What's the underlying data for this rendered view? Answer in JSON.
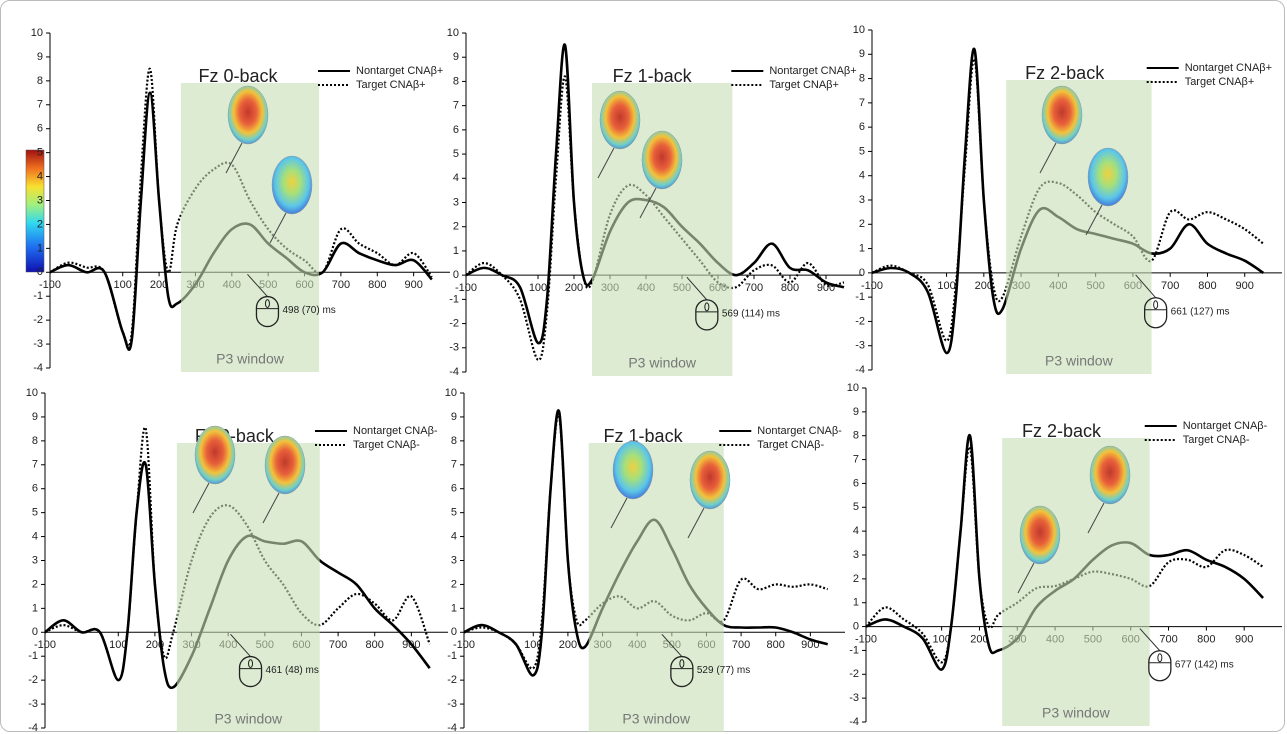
{
  "chart_data": [
    {
      "type": "line",
      "title": "Fz 0-back",
      "x": [
        -100,
        -50,
        0,
        50,
        100,
        125,
        150,
        175,
        200,
        225,
        250,
        300,
        350,
        400,
        450,
        500,
        550,
        600,
        650,
        700,
        750,
        800,
        850,
        900,
        950
      ],
      "series": [
        {
          "name": "Nontarget CNAβ+",
          "color": "#000000",
          "style": "solid",
          "values": [
            0,
            0.3,
            0,
            0,
            -2.5,
            -2.8,
            3,
            7.5,
            3,
            -1,
            -1.3,
            -0.5,
            0.8,
            1.8,
            2,
            1.2,
            0.6,
            0,
            0,
            1.2,
            0.8,
            0.5,
            0.3,
            0.5,
            -0.3
          ]
        },
        {
          "name": "Target CNAβ+",
          "color": "#000000",
          "style": "dotted",
          "values": [
            0,
            0.4,
            0.2,
            0,
            -2.5,
            -2.5,
            4,
            8.5,
            3,
            0,
            2,
            3.5,
            4.3,
            4.5,
            3,
            1.8,
            1,
            0.5,
            0,
            1.8,
            1.2,
            0.8,
            0.3,
            0.8,
            -0.2
          ]
        }
      ],
      "xlim": [
        -100,
        1000
      ],
      "ylim": [
        -4,
        10
      ],
      "xticks": [
        -100,
        100,
        200,
        300,
        400,
        500,
        600,
        700,
        800,
        900
      ],
      "yticks": [
        -4,
        -3,
        -2,
        -1,
        0,
        1,
        2,
        3,
        4,
        5,
        6,
        7,
        8,
        9,
        10
      ],
      "window": {
        "label": "P3 window",
        "range": [
          260,
          640
        ]
      },
      "rt": {
        "value": 498,
        "label": "498 (70) ms"
      }
    },
    {
      "type": "line",
      "title": "Fz 1-back",
      "x": [
        -100,
        -50,
        0,
        50,
        100,
        125,
        150,
        175,
        200,
        225,
        250,
        300,
        350,
        400,
        450,
        500,
        550,
        600,
        650,
        700,
        750,
        800,
        850,
        900,
        950
      ],
      "series": [
        {
          "name": "Nontarget CNAβ+",
          "color": "#000000",
          "style": "solid",
          "values": [
            0,
            0.3,
            0,
            -0.5,
            -2.8,
            -1,
            5,
            9.5,
            3,
            0,
            -0.2,
            1.8,
            3,
            3.1,
            2.8,
            2,
            1.3,
            0.5,
            0,
            0.5,
            1.3,
            0.3,
            0.2,
            -0.3,
            -0.5
          ]
        },
        {
          "name": "Target CNAβ+",
          "color": "#000000",
          "style": "dotted",
          "values": [
            0,
            0.5,
            0,
            -1,
            -3.5,
            -1.5,
            4,
            8.2,
            3,
            0,
            -0.3,
            2.5,
            3.7,
            3.3,
            2.4,
            1.5,
            0.6,
            -0.3,
            -0.5,
            0.2,
            0.4,
            -0.3,
            0.5,
            -0.4,
            -0.3
          ]
        }
      ],
      "xlim": [
        -100,
        1000
      ],
      "ylim": [
        -4,
        10
      ],
      "xticks": [
        -100,
        100,
        200,
        300,
        400,
        500,
        600,
        700,
        800,
        900
      ],
      "yticks": [
        -4,
        -3,
        -2,
        -1,
        0,
        1,
        2,
        3,
        4,
        5,
        6,
        7,
        8,
        9,
        10
      ],
      "window": {
        "label": "P3 window",
        "range": [
          250,
          640
        ]
      },
      "rt": {
        "value": 569,
        "label": "569 (114) ms"
      }
    },
    {
      "type": "line",
      "title": "Fz 2-back",
      "x": [
        -100,
        -50,
        0,
        50,
        100,
        125,
        150,
        175,
        200,
        225,
        250,
        300,
        350,
        400,
        450,
        500,
        550,
        600,
        650,
        700,
        750,
        800,
        850,
        900,
        950
      ],
      "series": [
        {
          "name": "Nontarget CNAβ+",
          "color": "#000000",
          "style": "solid",
          "values": [
            0,
            0.2,
            0,
            -0.8,
            -3.3,
            -1,
            5,
            9.2,
            3,
            -1,
            -1.5,
            1,
            2.6,
            2.3,
            1.8,
            1.6,
            1.4,
            1.2,
            0.8,
            1,
            2,
            1.2,
            0.8,
            0.5,
            0
          ]
        },
        {
          "name": "Target CNAβ+",
          "color": "#000000",
          "style": "dotted",
          "values": [
            0,
            0.3,
            0,
            -0.5,
            -2.8,
            -0.5,
            4.5,
            8.8,
            3,
            -0.5,
            -1,
            1.5,
            3.5,
            3.7,
            3.2,
            2.5,
            2,
            1.5,
            0.5,
            2.5,
            2.2,
            2.5,
            2.2,
            1.8,
            1.2
          ]
        }
      ],
      "xlim": [
        -100,
        1000
      ],
      "ylim": [
        -4,
        10
      ],
      "xticks": [
        -100,
        100,
        200,
        300,
        400,
        500,
        600,
        700,
        800,
        900
      ],
      "yticks": [
        -4,
        -3,
        -2,
        -1,
        0,
        1,
        2,
        3,
        4,
        5,
        6,
        7,
        8,
        9,
        10
      ],
      "window": {
        "label": "P3 window",
        "range": [
          260,
          650
        ]
      },
      "rt": {
        "value": 661,
        "label": "661 (127) ms"
      }
    },
    {
      "type": "line",
      "title": "Fz 0-back",
      "x": [
        -100,
        -50,
        0,
        50,
        100,
        125,
        150,
        175,
        200,
        225,
        250,
        300,
        350,
        400,
        450,
        500,
        550,
        600,
        650,
        700,
        750,
        800,
        850,
        900,
        950
      ],
      "series": [
        {
          "name": "Nontarget CNAβ-",
          "color": "#000000",
          "style": "solid",
          "values": [
            0,
            0.5,
            0,
            0,
            -2,
            0,
            5,
            7,
            2,
            -1.5,
            -2.3,
            -1,
            1,
            3,
            4,
            3.8,
            3.7,
            3.8,
            3,
            2.5,
            2,
            1,
            0.3,
            -0.5,
            -1.5
          ]
        },
        {
          "name": "Target CNAβ-",
          "color": "#000000",
          "style": "dotted",
          "values": [
            0,
            0.3,
            0,
            0,
            -2,
            0,
            5,
            8.5,
            2,
            -1,
            0,
            3,
            4.8,
            5.3,
            4.5,
            3,
            2,
            0.8,
            0.3,
            1,
            1.6,
            1.2,
            0.5,
            1.5,
            -0.5
          ]
        }
      ],
      "xlim": [
        -100,
        1000
      ],
      "ylim": [
        -4,
        10
      ],
      "xticks": [
        -100,
        100,
        200,
        300,
        400,
        500,
        600,
        700,
        800,
        900
      ],
      "yticks": [
        -4,
        -3,
        -2,
        -1,
        0,
        1,
        2,
        3,
        4,
        5,
        6,
        7,
        8,
        9,
        10
      ],
      "window": {
        "label": "P3 window",
        "range": [
          260,
          650
        ]
      },
      "rt": {
        "value": 461,
        "label": "461 (48) ms"
      }
    },
    {
      "type": "line",
      "title": "Fz 1-back",
      "x": [
        -100,
        -50,
        0,
        50,
        100,
        125,
        150,
        175,
        200,
        225,
        250,
        300,
        350,
        400,
        450,
        500,
        550,
        600,
        650,
        700,
        750,
        800,
        850,
        900,
        950
      ],
      "series": [
        {
          "name": "Nontarget CNAβ-",
          "color": "#000000",
          "style": "solid",
          "values": [
            0,
            0.3,
            0,
            -0.5,
            -1.8,
            0,
            6,
            9.2,
            3,
            0,
            -0.6,
            1,
            2.5,
            3.8,
            4.7,
            3.5,
            2,
            1,
            0.3,
            0.2,
            0.2,
            0.2,
            0,
            -0.3,
            -0.5
          ]
        },
        {
          "name": "Target CNAβ-",
          "color": "#000000",
          "style": "dotted",
          "values": [
            0,
            0.2,
            0,
            -0.5,
            -1.5,
            0.5,
            6,
            9,
            3,
            0.5,
            0.5,
            1.2,
            1.5,
            1,
            1.3,
            0.7,
            0.5,
            0.8,
            0.5,
            2.2,
            1.8,
            2,
            1.9,
            2,
            1.8
          ]
        }
      ],
      "xlim": [
        -100,
        1000
      ],
      "ylim": [
        -4,
        10
      ],
      "xticks": [
        -100,
        100,
        200,
        300,
        400,
        500,
        600,
        700,
        800,
        900
      ],
      "yticks": [
        -4,
        -3,
        -2,
        -1,
        0,
        1,
        2,
        3,
        4,
        5,
        6,
        7,
        8,
        9,
        10
      ],
      "window": {
        "label": "P3 window",
        "range": [
          260,
          650
        ]
      },
      "rt": {
        "value": 529,
        "label": "529 (77) ms"
      }
    },
    {
      "type": "line",
      "title": "Fz 2-back",
      "x": [
        -100,
        -50,
        0,
        50,
        100,
        125,
        150,
        175,
        200,
        225,
        250,
        300,
        350,
        400,
        450,
        500,
        550,
        600,
        650,
        700,
        750,
        800,
        850,
        900,
        950
      ],
      "series": [
        {
          "name": "Nontarget CNAβ-",
          "color": "#000000",
          "style": "solid",
          "values": [
            0,
            0.3,
            0,
            -0.5,
            -1.8,
            0,
            4,
            8,
            2,
            -0.8,
            -1,
            -0.5,
            0.8,
            1.5,
            2,
            2.8,
            3.4,
            3.5,
            3,
            3,
            3.2,
            2.8,
            2.5,
            2,
            1.2
          ]
        },
        {
          "name": "Target CNAβ-",
          "color": "#000000",
          "style": "dotted",
          "values": [
            0,
            0.8,
            0.3,
            -0.3,
            -1.5,
            0,
            4,
            7.5,
            2,
            0,
            0.5,
            1,
            1.6,
            1.7,
            2,
            2.3,
            2.2,
            2,
            1.7,
            2.7,
            2.8,
            2.5,
            3.2,
            3,
            2.5
          ]
        }
      ],
      "xlim": [
        -100,
        1000
      ],
      "ylim": [
        -4,
        10
      ],
      "xticks": [
        -100,
        100,
        200,
        300,
        400,
        500,
        600,
        700,
        800,
        900
      ],
      "yticks": [
        -4,
        -3,
        -2,
        -1,
        0,
        1,
        2,
        3,
        4,
        5,
        6,
        7,
        8,
        9,
        10
      ],
      "window": {
        "label": "P3 window",
        "range": [
          260,
          650
        ]
      },
      "rt": {
        "value": 677,
        "label": "677 (142) ms"
      }
    }
  ]
}
